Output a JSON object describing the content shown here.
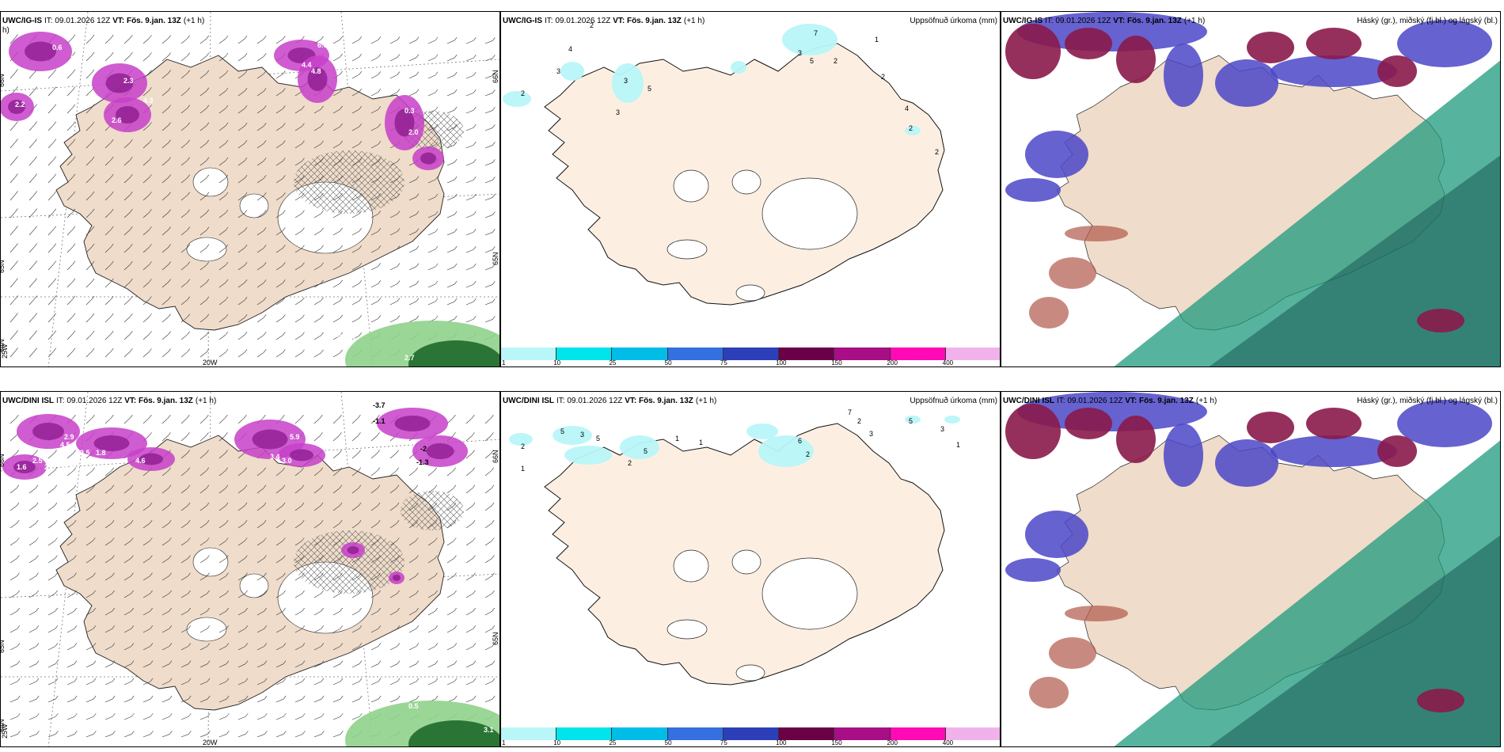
{
  "panels": [
    {
      "id": "p1",
      "model": "UWC/IG-IS",
      "it": "IT: 09.01.2026 12Z",
      "vt_label": "VT:",
      "vt": "Fös. 9.jan. 13Z",
      "lead": "(+1 h)",
      "field": "",
      "title_overflow": "h)",
      "lat_labels": [
        "66N",
        "65N",
        "64N"
      ],
      "lat_labels_right": [
        "66N",
        "65N"
      ],
      "lon_labels": [
        "25W",
        "20W"
      ],
      "values": [
        "2.2",
        "2.8",
        "3.9",
        "0.6",
        "2.3",
        "4.3",
        "2.6",
        "4.4",
        "4.8",
        "6.6",
        "2.0",
        "0.3",
        "2.7",
        "0.6",
        "0.7",
        "0.7"
      ]
    },
    {
      "id": "p2",
      "model": "UWC/IG-IS",
      "it": "IT: 09.01.2026 12Z",
      "vt_label": "VT:",
      "vt": "Fös. 9.jan. 13Z",
      "lead": "(+1 h)",
      "field": "Uppsöfnuð úrkoma (mm)",
      "values": [
        "2",
        "4",
        "3",
        "2",
        "3",
        "3",
        "5",
        "7",
        "3",
        "5",
        "2",
        "1",
        "2",
        "4",
        "2",
        "2"
      ]
    },
    {
      "id": "p3",
      "model": "UWC/IG-IS",
      "it": "IT: 09.01.2026 12Z",
      "vt_label": "VT:",
      "vt": "Fös. 9.jan. 13Z",
      "lead": "(+1 h)",
      "field": "Háský (gr.), miðský (fj.bl.) og lágský (bl.)"
    },
    {
      "id": "p4",
      "model": "UWC/DINI ISL",
      "it": "IT: 09.01.2026 12Z",
      "vt_label": "VT:",
      "vt": "Fös. 9.jan. 13Z",
      "lead": "(+1 h)",
      "field": "",
      "lat_labels": [
        "66N",
        "65N",
        "64N"
      ],
      "lat_labels_right": [
        "66N",
        "65N"
      ],
      "lon_labels": [
        "25W",
        "20W"
      ],
      "values": [
        "2.5",
        "2.9",
        "1.6",
        "2.7",
        "1.9",
        "4.5",
        "2.5",
        "4.6",
        "1.8",
        "3.4",
        "5.9",
        "3.0",
        "-3.7",
        "-1.1",
        "-2",
        "-1.3",
        "0.5",
        "3.1"
      ]
    },
    {
      "id": "p5",
      "model": "UWC/DINI ISL",
      "it": "IT: 09.01.2026 12Z",
      "vt_label": "VT:",
      "vt": "Fös. 9.jan. 13Z",
      "lead": "(+1 h)",
      "field": "Uppsöfnuð úrkoma (mm)",
      "values": [
        "2",
        "5",
        "1",
        "3",
        "5",
        "2",
        "1",
        "1",
        "5",
        "6",
        "2",
        "7",
        "2",
        "3",
        "5",
        "3",
        "1"
      ]
    },
    {
      "id": "p6",
      "model": "UWC/DINI ISL",
      "it": "IT: 09.01.2026 12Z",
      "vt_label": "VT:",
      "vt": "Fös. 9.jan. 13Z",
      "lead": "(+1 h)",
      "field": "Háský (gr.), miðský (fj.bl.) og lágský (bl.)"
    }
  ],
  "colorbar": {
    "ticks": [
      "1",
      "10",
      "25",
      "50",
      "75",
      "100",
      "150",
      "200",
      "400"
    ],
    "colors": [
      "#b8f6f8",
      "#00e4ec",
      "#00bde8",
      "#3470e0",
      "#2c3fb8",
      "#6a0046",
      "#a80e86",
      "#ff0ab4",
      "#f1b2ec"
    ]
  },
  "colors": {
    "land": "#efdcca",
    "land_light": "#fcefe1",
    "precip": "#c740c9",
    "low_cloud": "#1e9a7e",
    "mid_cloud": "#4b47c8",
    "high_cloud": "#8a1a4a"
  }
}
